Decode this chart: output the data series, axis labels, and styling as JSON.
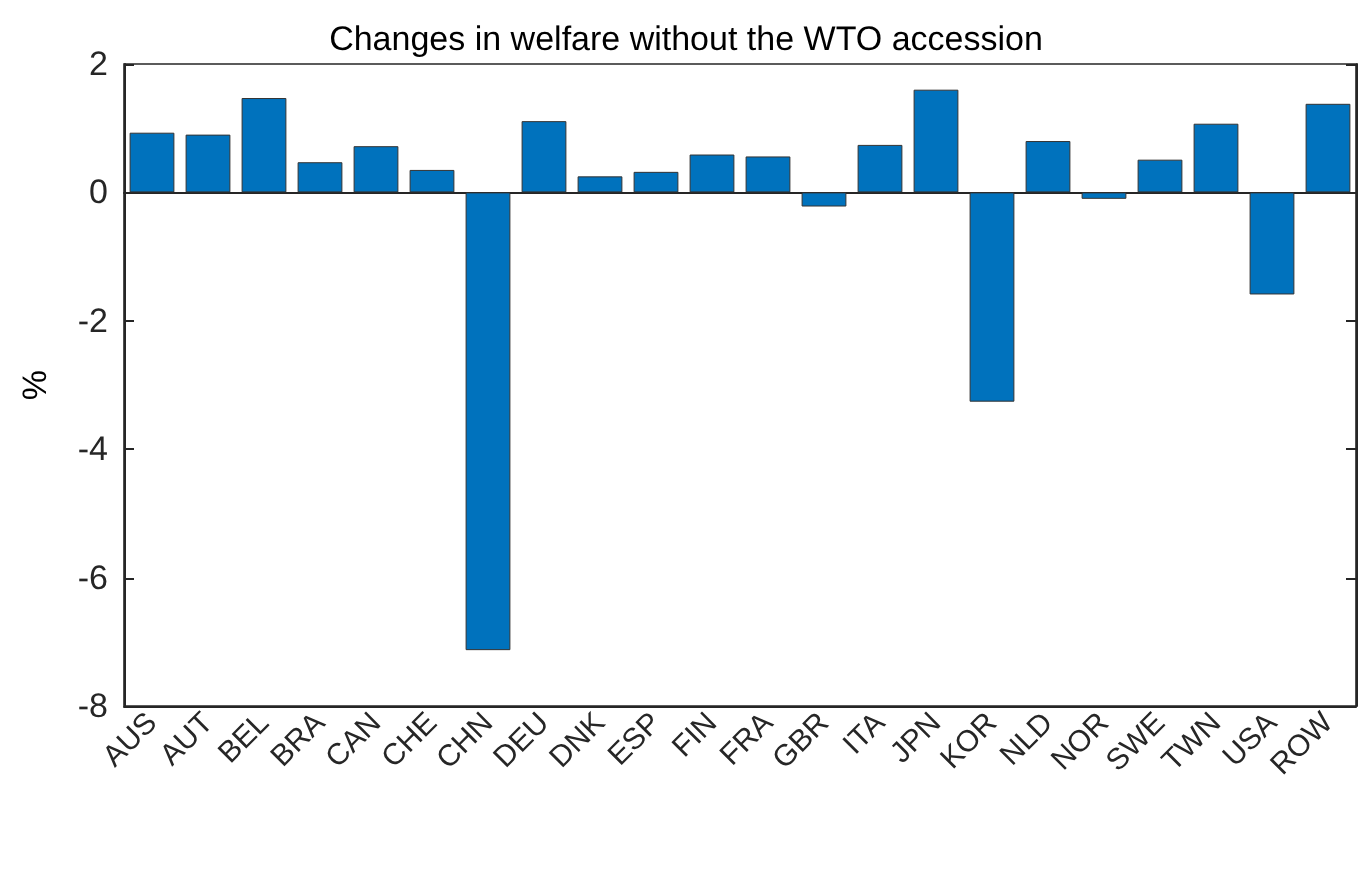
{
  "chart_data": {
    "type": "bar",
    "title": "Changes in welfare without the WTO accession",
    "ylabel": "%",
    "categories": [
      "AUS",
      "AUT",
      "BEL",
      "BRA",
      "CAN",
      "CHE",
      "CHN",
      "DEU",
      "DNK",
      "ESP",
      "FIN",
      "FRA",
      "GBR",
      "ITA",
      "JPN",
      "KOR",
      "NLD",
      "NOR",
      "SWE",
      "TWN",
      "USA",
      "ROW"
    ],
    "values": [
      0.93,
      0.9,
      1.47,
      0.47,
      0.72,
      0.35,
      -7.13,
      1.11,
      0.25,
      0.32,
      0.59,
      0.56,
      -0.22,
      0.74,
      1.6,
      -3.26,
      0.8,
      -0.1,
      0.51,
      1.07,
      -1.59,
      1.38
    ],
    "color": "#0072bd",
    "ylim": [
      -8,
      2
    ],
    "yticks": [
      -8,
      -6,
      -4,
      -2,
      0,
      2
    ]
  }
}
